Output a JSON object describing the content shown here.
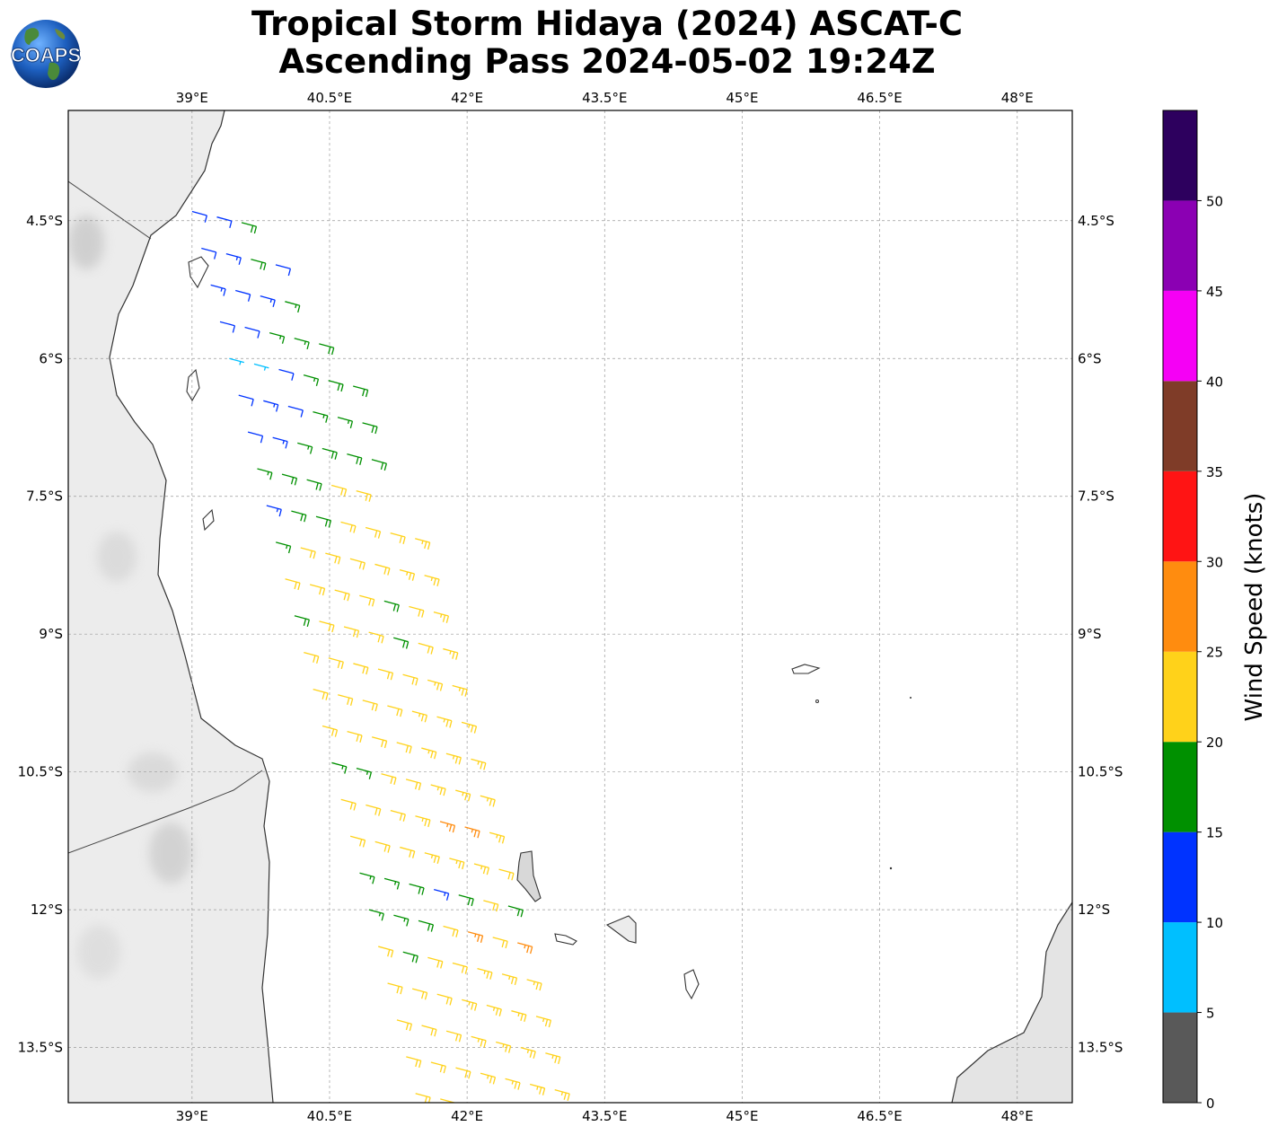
{
  "title": "Tropical Storm Hidaya (2024) ASCAT-C",
  "subtitle": "Ascending Pass 2024-05-02 19:24Z",
  "logo_text": "COAPS",
  "chart_data": {
    "type": "wind_barb_map",
    "x_range_lon": [
      37.65,
      48.6
    ],
    "y_range_lat": [
      -3.3,
      -14.1
    ],
    "lon_ticks": [
      39.0,
      40.5,
      42.0,
      43.5,
      45.0,
      46.5,
      48.0
    ],
    "lon_tick_labels": [
      "39°E",
      "40.5°E",
      "42°E",
      "43.5°E",
      "45°E",
      "46.5°E",
      "48°E"
    ],
    "lat_ticks": [
      -4.5,
      -6.0,
      -7.5,
      -9.0,
      -10.5,
      -12.0,
      -13.5
    ],
    "lat_tick_labels": [
      "4.5°S",
      "6°S",
      "7.5°S",
      "9°S",
      "10.5°S",
      "12°S",
      "13.5°S"
    ],
    "grid": true,
    "colorbar": {
      "label": "Wind Speed (knots)",
      "ticks": [
        "0",
        "5",
        "10",
        "15",
        "20",
        "25",
        "30",
        "35",
        "40",
        "45",
        "50"
      ],
      "bounds": [
        0,
        5,
        10,
        15,
        20,
        25,
        30,
        35,
        40,
        45,
        50,
        55
      ],
      "colors": [
        "#595959",
        "#00bfff",
        "#0033ff",
        "#009000",
        "#ffd21a",
        "#ff8c0f",
        "#ff1414",
        "#7f3c28",
        "#f500f5",
        "#8b00b3",
        "#2d005e"
      ]
    },
    "swath": {
      "lon_start": 39.5,
      "lat_start": -4.2,
      "lon_end": 42.0,
      "lat_end": -14.05,
      "wind_from_deg": 105
    },
    "wind_rows": [
      {
        "lat": -4.4,
        "speeds": [
          12,
          12,
          19
        ]
      },
      {
        "lat": -4.8,
        "speeds": [
          12,
          14,
          19,
          12
        ]
      },
      {
        "lat": -5.2,
        "speeds": [
          13,
          12,
          14,
          16
        ]
      },
      {
        "lat": -5.6,
        "speeds": [
          12,
          12,
          17,
          17,
          18
        ]
      },
      {
        "lat": -6.0,
        "speeds": [
          7,
          6,
          12,
          16,
          18,
          18
        ]
      },
      {
        "lat": -6.4,
        "speeds": [
          12,
          14,
          12,
          16,
          17,
          18
        ]
      },
      {
        "lat": -6.8,
        "speeds": [
          12,
          14,
          16,
          18,
          18,
          18
        ]
      },
      {
        "lat": -7.2,
        "speeds": [
          17,
          18,
          18,
          21,
          22
        ]
      },
      {
        "lat": -7.6,
        "speeds": [
          14,
          18,
          18,
          22,
          22,
          22,
          23
        ]
      },
      {
        "lat": -8.0,
        "speeds": [
          17,
          21,
          22,
          22,
          22,
          23,
          23
        ]
      },
      {
        "lat": -8.4,
        "speeds": [
          21,
          22,
          22,
          22,
          18,
          22,
          23
        ]
      },
      {
        "lat": -8.8,
        "speeds": [
          18,
          22,
          22,
          22,
          18,
          22,
          23
        ]
      },
      {
        "lat": -9.2,
        "speeds": [
          22,
          22,
          22,
          22,
          22,
          23,
          23
        ]
      },
      {
        "lat": -9.6,
        "speeds": [
          22,
          22,
          22,
          22,
          23,
          23,
          23
        ]
      },
      {
        "lat": -10.0,
        "speeds": [
          22,
          22,
          22,
          22,
          23,
          23,
          24
        ]
      },
      {
        "lat": -10.4,
        "speeds": [
          17,
          17,
          22,
          22,
          23,
          23,
          23
        ]
      },
      {
        "lat": -10.8,
        "speeds": [
          22,
          22,
          22,
          23,
          26,
          27,
          23
        ]
      },
      {
        "lat": -11.2,
        "speeds": [
          22,
          22,
          22,
          23,
          23,
          23,
          22
        ]
      },
      {
        "lat": -11.6,
        "speeds": [
          17,
          17,
          18,
          13,
          18,
          22,
          18
        ]
      },
      {
        "lat": -12.0,
        "speeds": [
          17,
          17,
          18,
          22,
          26,
          22,
          27
        ]
      },
      {
        "lat": -12.4,
        "speeds": [
          22,
          18,
          22,
          22,
          23,
          23,
          23
        ]
      },
      {
        "lat": -12.8,
        "speeds": [
          22,
          22,
          22,
          23,
          23,
          23,
          23
        ]
      },
      {
        "lat": -13.2,
        "speeds": [
          22,
          22,
          22,
          23,
          23,
          23,
          23
        ]
      },
      {
        "lat": -13.6,
        "speeds": [
          22,
          22,
          22,
          23,
          23,
          23,
          23
        ]
      },
      {
        "lat": -14.0,
        "speeds": [
          22,
          22,
          22,
          23,
          23,
          23,
          23
        ]
      }
    ]
  }
}
